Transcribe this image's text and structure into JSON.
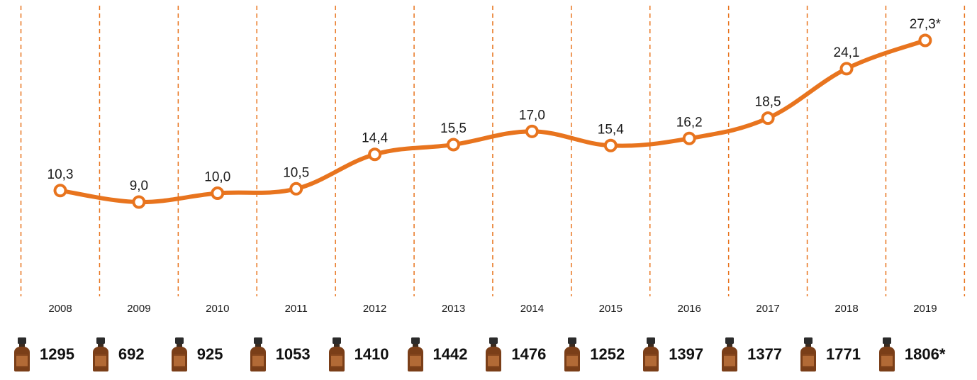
{
  "chart_data": {
    "type": "line",
    "categories": [
      "2008",
      "2009",
      "2010",
      "2011",
      "2012",
      "2013",
      "2014",
      "2015",
      "2016",
      "2017",
      "2018",
      "2019"
    ],
    "series": [
      {
        "values": [
          10.3,
          9.0,
          10.0,
          10.5,
          14.4,
          15.5,
          17.0,
          15.4,
          16.2,
          18.5,
          24.1,
          27.3
        ]
      }
    ],
    "data_labels": [
      "10,3",
      "9,0",
      "10,0",
      "10,5",
      "14,4",
      "15,5",
      "17,0",
      "15,4",
      "16,2",
      "18,5",
      "24,1",
      "27,3*"
    ],
    "line_color": "#e8741e",
    "gridlines": "vertical dashed separators between years",
    "grid_color": "#e8741e"
  },
  "bottles": {
    "icon": "bottle-icon",
    "counts": [
      "1295",
      "692",
      "925",
      "1053",
      "1410",
      "1442",
      "1476",
      "1252",
      "1397",
      "1377",
      "1771",
      "1806*"
    ]
  }
}
